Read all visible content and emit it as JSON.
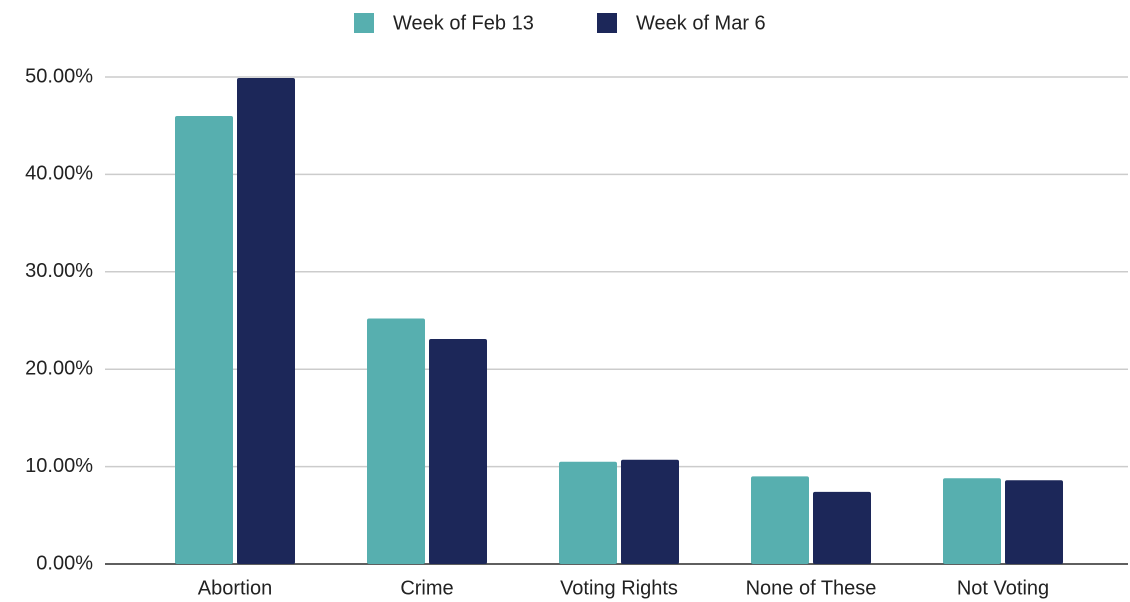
{
  "chart_data": {
    "type": "bar",
    "categories": [
      "Abortion",
      "Crime",
      "Voting Rights",
      "None of These",
      "Not Voting"
    ],
    "series": [
      {
        "name": "Week of Feb 13",
        "color": "#57afaf",
        "values": [
          46,
          25.2,
          10.5,
          9.0,
          8.8
        ]
      },
      {
        "name": "Week of Mar 6",
        "color": "#1c2759",
        "values": [
          49.9,
          23.1,
          10.7,
          7.4,
          8.6
        ]
      }
    ],
    "ylim": [
      0,
      50
    ],
    "yticks": [
      {
        "value": 0,
        "label": "0.00%"
      },
      {
        "value": 10,
        "label": "10.00%"
      },
      {
        "value": 20,
        "label": "20.00%"
      },
      {
        "value": 30,
        "label": "30.00%"
      },
      {
        "value": 40,
        "label": "40.00%"
      },
      {
        "value": 50,
        "label": "50.00%"
      }
    ],
    "grid": true,
    "legend": "top"
  }
}
